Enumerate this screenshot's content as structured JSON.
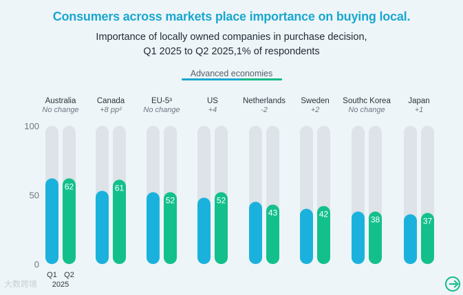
{
  "page": {
    "title": "Consumers across markets place importance on buying local.",
    "subtitle_line1": "Importance of locally owned companies in purchase decision,",
    "subtitle_line2": "Q1 2025 to Q2 2025,1% of respondents",
    "group_label": "Advanced economies",
    "watermark": "大数跨境",
    "colors": {
      "q1": "#1ab2dd",
      "q2": "#13c08c",
      "track": "#dde3e8",
      "title": "#1aa7cf"
    }
  },
  "chart_data": {
    "type": "bar",
    "title": "Importance of locally owned companies in purchase decision",
    "categories": [
      "Australia",
      "Canada",
      "EU-5³",
      "US",
      "Netherlands",
      "Sweden",
      "Southc Korea",
      "Japan"
    ],
    "changes": [
      "No change",
      "+8 pp²",
      "No change",
      "+4",
      "-2",
      "+2",
      "No change",
      "+1"
    ],
    "series": [
      {
        "name": "Q1",
        "values": [
          62,
          53,
          52,
          48,
          45,
          40,
          38,
          36
        ]
      },
      {
        "name": "Q2",
        "values": [
          62,
          61,
          52,
          52,
          43,
          42,
          38,
          37
        ]
      }
    ],
    "data_labels_series": "Q2",
    "y_ticks": [
      100,
      50,
      0
    ],
    "ylim": [
      0,
      100
    ],
    "x_tick_labels": [
      "Q1",
      "Q2"
    ],
    "x_axis_label": "2025"
  }
}
